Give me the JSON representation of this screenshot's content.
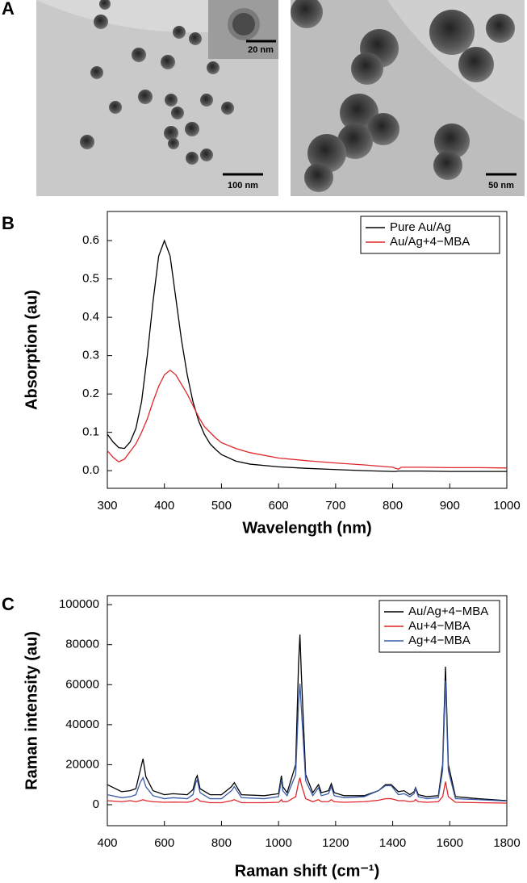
{
  "figure": {
    "panel_labels": [
      "A",
      "B",
      "C"
    ],
    "scale_bars": [
      "100 nm",
      "20 nm",
      "50 nm"
    ]
  },
  "chart_data": [
    {
      "type": "line",
      "x_label": "Wavelength (nm)",
      "y_label": "Absorption (au)",
      "legend": "upper right",
      "x": [
        300,
        310,
        320,
        330,
        340,
        350,
        360,
        370,
        380,
        390,
        400,
        410,
        420,
        430,
        440,
        450,
        460,
        470,
        480,
        490,
        500,
        525,
        550,
        600,
        650,
        700,
        750,
        800,
        805,
        810,
        815,
        850,
        900,
        950,
        1000
      ],
      "series": [
        {
          "name": "Pure Au/Ag",
          "color": "#000000",
          "values": [
            0.095,
            0.075,
            0.06,
            0.058,
            0.075,
            0.11,
            0.18,
            0.3,
            0.44,
            0.56,
            0.6,
            0.56,
            0.45,
            0.34,
            0.25,
            0.18,
            0.13,
            0.095,
            0.07,
            0.055,
            0.042,
            0.025,
            0.017,
            0.01,
            0.006,
            0.003,
            0,
            -0.002,
            -0.002,
            -0.001,
            -0.001,
            -0.001,
            -0.002,
            -0.002,
            -0.002
          ]
        },
        {
          "name": "Au/Ag+4−MBA",
          "color": "#e0262b",
          "values": [
            0.052,
            0.035,
            0.023,
            0.03,
            0.05,
            0.07,
            0.1,
            0.135,
            0.18,
            0.22,
            0.25,
            0.262,
            0.25,
            0.225,
            0.2,
            0.17,
            0.14,
            0.115,
            0.1,
            0.085,
            0.073,
            0.058,
            0.047,
            0.033,
            0.026,
            0.02,
            0.015,
            0.009,
            0.006,
            0.004,
            0.009,
            0.009,
            0.008,
            0.008,
            0.007
          ]
        }
      ],
      "xlim": [
        300,
        1000
      ],
      "xticks": [
        300,
        400,
        500,
        600,
        700,
        800,
        900,
        1000
      ],
      "ylim": [
        -0.046,
        0.676
      ],
      "yticks": [
        {
          "value": 0,
          "label": "0.0"
        },
        0.1,
        0.2,
        0.3,
        0.4,
        0.5,
        0.6
      ]
    },
    {
      "type": "line",
      "x_label": "Raman shift (cm⁻¹)",
      "y_label": "Raman intensity (au)",
      "legend": "upper right",
      "x": [
        400,
        450,
        480,
        500,
        515,
        525,
        535,
        560,
        600,
        630,
        680,
        700,
        710,
        715,
        725,
        760,
        800,
        835,
        845,
        870,
        950,
        1000,
        1005,
        1010,
        1015,
        1030,
        1060,
        1070,
        1075,
        1080,
        1095,
        1120,
        1130,
        1140,
        1150,
        1175,
        1185,
        1195,
        1230,
        1300,
        1350,
        1375,
        1395,
        1420,
        1440,
        1460,
        1475,
        1480,
        1490,
        1520,
        1560,
        1575,
        1585,
        1595,
        1620,
        1700,
        1800
      ],
      "series": [
        {
          "name": "Au/Ag+4−MBA",
          "color": "#000000",
          "values": [
            10000,
            6500,
            7000,
            8000,
            17000,
            23000,
            14000,
            7000,
            5000,
            5500,
            5000,
            7500,
            13000,
            14500,
            8000,
            5000,
            5000,
            9000,
            11000,
            5000,
            4500,
            5500,
            10000,
            14500,
            9000,
            6000,
            20000,
            70000,
            85000,
            65000,
            15000,
            6000,
            8000,
            10000,
            6000,
            7000,
            10500,
            6000,
            4500,
            4500,
            7000,
            10000,
            10000,
            6500,
            7000,
            5000,
            6500,
            8500,
            5000,
            4000,
            4500,
            20000,
            69000,
            20000,
            4000,
            3000,
            2000
          ]
        },
        {
          "name": "Au+4−MBA",
          "color": "#e0262b",
          "values": [
            2000,
            1500,
            2000,
            1500,
            2000,
            2500,
            2000,
            1500,
            1200,
            1300,
            1200,
            1800,
            2800,
            3000,
            1800,
            1000,
            1000,
            2000,
            2500,
            1000,
            1000,
            1200,
            1800,
            2500,
            1500,
            1500,
            4000,
            11000,
            13500,
            10000,
            3000,
            1500,
            2000,
            2500,
            1500,
            1500,
            2500,
            1500,
            1200,
            1500,
            2200,
            3000,
            3000,
            2000,
            2000,
            1500,
            1800,
            2500,
            1500,
            1200,
            1500,
            4000,
            11500,
            4000,
            1200,
            1000,
            800
          ]
        },
        {
          "name": "Ag+4−MBA",
          "color": "#3b5ba8",
          "values": [
            5000,
            3500,
            4000,
            5000,
            11000,
            13500,
            9000,
            4500,
            3000,
            3500,
            3000,
            5000,
            11000,
            12500,
            6000,
            3000,
            3000,
            7000,
            9000,
            3500,
            3000,
            4000,
            8000,
            12500,
            7000,
            4500,
            15000,
            50000,
            60500,
            48000,
            12000,
            4500,
            6500,
            8500,
            4500,
            5500,
            9000,
            4500,
            3500,
            4000,
            7000,
            9500,
            9500,
            5000,
            5500,
            4000,
            5500,
            8000,
            4000,
            3000,
            3500,
            17000,
            62000,
            17000,
            3000,
            2500,
            1800
          ]
        }
      ],
      "xlim": [
        400,
        1800
      ],
      "xticks": [
        400,
        600,
        800,
        1000,
        1200,
        1400,
        1600,
        1800
      ],
      "ylim": [
        -10500,
        104500
      ],
      "yticks": [
        0,
        20000,
        40000,
        60000,
        80000,
        100000
      ]
    }
  ]
}
